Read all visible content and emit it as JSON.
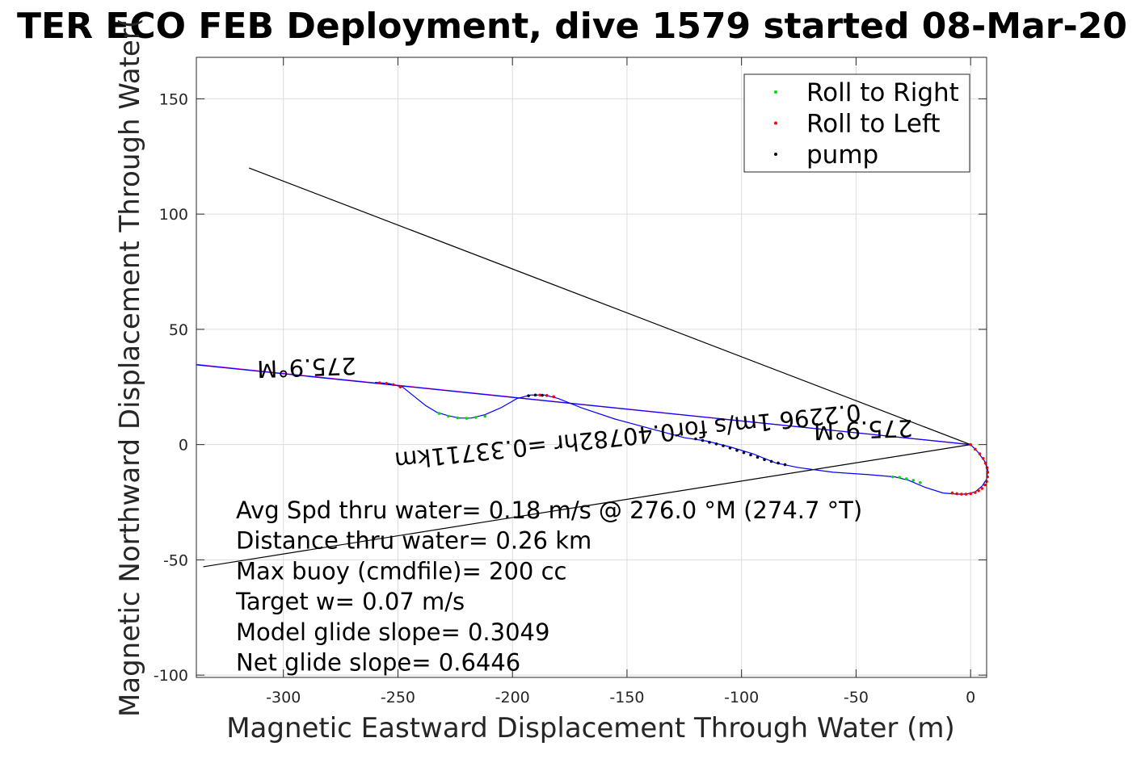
{
  "chart_data": {
    "type": "scatter",
    "title": "TER ECO FEB Deployment, dive 1579 started 08-Mar-20",
    "xlabel": "Magnetic Eastward Displacement Through Water (m)",
    "ylabel": "Magnetic Northward Displacement Through Water(",
    "xlim": [
      -338,
      7
    ],
    "ylim": [
      -101,
      168
    ],
    "xticks": [
      -300,
      -250,
      -200,
      -150,
      -100,
      -50,
      0
    ],
    "yticks": [
      -100,
      -50,
      0,
      50,
      100,
      150
    ],
    "xtick_labels": [
      "-300",
      "-250",
      "-200",
      "-150",
      "-100",
      "-50",
      "0"
    ],
    "ytick_labels": [
      "-100",
      "-50",
      "0",
      "50",
      "100",
      "150"
    ],
    "grid": true,
    "legend": {
      "placement": "top-right",
      "entries": [
        {
          "label": "Roll to Right",
          "color": "#00dd00"
        },
        {
          "label": "Roll to Left",
          "color": "#ff0000"
        },
        {
          "label": "pump",
          "color": "#000000"
        }
      ]
    },
    "series": [
      {
        "kind": "track",
        "color": "#0000ff",
        "x": [
          0,
          3,
          6,
          7.5,
          7,
          5,
          2,
          -2,
          -6,
          -12,
          -20,
          -27,
          -33,
          -45,
          -60,
          -75,
          -85,
          -95,
          -105,
          -115,
          -125,
          -140,
          -155,
          -170,
          -180,
          -186,
          -192,
          -198,
          -205,
          -212,
          -218,
          -223,
          -228,
          -233,
          -238,
          -243,
          -248,
          -254,
          -260
        ],
        "y": [
          0,
          -3,
          -7,
          -11,
          -15,
          -18,
          -20.5,
          -21.5,
          -21.5,
          -21,
          -18.5,
          -15.5,
          -14,
          -13,
          -12,
          -10,
          -8,
          -4,
          -1,
          1.5,
          3,
          7,
          11,
          16,
          20,
          21.5,
          21.5,
          20,
          16,
          13,
          11.5,
          11.5,
          12.5,
          14,
          17,
          21,
          25,
          26.5,
          27
        ]
      },
      {
        "kind": "markers",
        "name": "Roll to Left",
        "color": "#ff0000",
        "x": [
          0,
          2,
          4,
          5.5,
          6.5,
          7.2,
          7.5,
          7.4,
          7,
          6.2,
          5,
          3.5,
          2,
          0,
          -2,
          -4,
          -6,
          -8,
          -188,
          -185,
          -182,
          -258,
          -255,
          -252,
          -249
        ],
        "y": [
          0,
          -2,
          -4,
          -6,
          -8,
          -10,
          -12,
          -14,
          -16,
          -17.5,
          -19,
          -20,
          -20.8,
          -21.3,
          -21.5,
          -21.5,
          -21.3,
          -21,
          21.5,
          21.3,
          20.8,
          26.8,
          26.5,
          26,
          25
        ]
      },
      {
        "kind": "markers",
        "name": "Roll to Right",
        "color": "#00dd00",
        "x": [
          -34,
          -31,
          -28,
          -25,
          -22,
          -232,
          -228,
          -224,
          -220,
          -216,
          -212
        ],
        "y": [
          -14,
          -14.2,
          -14.8,
          -15.5,
          -16.5,
          13.5,
          12.3,
          11.6,
          11.4,
          11.8,
          12.3
        ]
      },
      {
        "kind": "markers",
        "name": "pump",
        "color": "#000033",
        "x": [
          -120,
          -117,
          -114,
          -111,
          -108,
          -105,
          -102,
          -99,
          -96,
          -93,
          -90,
          -87,
          -84,
          -81,
          -193,
          -190,
          -187
        ],
        "y": [
          2.5,
          1.8,
          1,
          0.3,
          -0.5,
          -1.5,
          -2.5,
          -3.5,
          -4.5,
          -5.5,
          -6.5,
          -7.3,
          -8,
          -8.7,
          21.2,
          21.5,
          21.4
        ]
      }
    ],
    "reference_lines": [
      {
        "color": "#ff00ff",
        "x": [
          0,
          -338
        ],
        "y": [
          0,
          34.8
        ]
      },
      {
        "color": "#0000ff",
        "x": [
          0,
          -338
        ],
        "y": [
          0,
          34.6
        ]
      },
      {
        "color": "#000000",
        "x": [
          0,
          -315
        ],
        "y": [
          0,
          120
        ]
      },
      {
        "color": "#000000",
        "x": [
          0,
          -335
        ],
        "y": [
          0,
          -53
        ]
      }
    ],
    "annotations": [
      {
        "text": "275.9°M",
        "x": -290,
        "y": 37,
        "rotation_deg": 178
      },
      {
        "text": "0.2296 1m/s for0.40782hr =0.33711km",
        "x": -150,
        "y": 7,
        "rotation_deg": 174
      },
      {
        "text": "275.9°M",
        "x": -47,
        "y": 10,
        "rotation_deg": 178
      }
    ],
    "stats": [
      "Avg Spd thru water=  0.18 m/s @ 276.0 °M (274.7 °T)",
      "Distance thru water=  0.26 km",
      "Max buoy (cmdfile)= 200 cc",
      "Target w= 0.07 m/s",
      "Model glide slope= 0.3049",
      "Net glide slope= 0.6446"
    ]
  }
}
